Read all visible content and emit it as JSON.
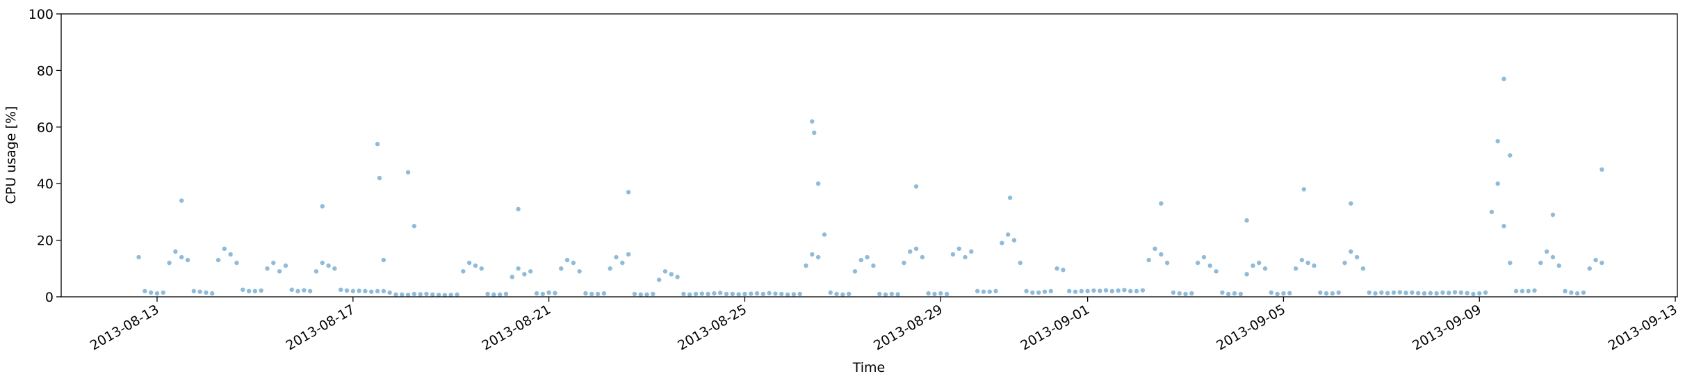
{
  "chart_data": {
    "type": "scatter",
    "x_label": "Time",
    "y_label": "CPU usage [%]",
    "color": "#1f77b4",
    "xlim": [
      "2013-08-11T01:00",
      "2013-09-13T01:00"
    ],
    "xticks": [
      "2013-08-13",
      "2013-08-17",
      "2013-08-21",
      "2013-08-25",
      "2013-08-29",
      "2013-09-01",
      "2013-09-05",
      "2013-09-09",
      "2013-09-13"
    ],
    "ylim": [
      0,
      100
    ],
    "yticks": [
      0,
      20,
      40,
      60,
      80,
      100
    ],
    "x": [
      "2013-08-12T15:00",
      "2013-08-12T18:00",
      "2013-08-12T21:00",
      "2013-08-13T00:00",
      "2013-08-13T03:00",
      "2013-08-13T06:00",
      "2013-08-13T09:00",
      "2013-08-13T12:00",
      "2013-08-13T15:00",
      "2013-08-13T18:00",
      "2013-08-13T21:00",
      "2013-08-14T00:00",
      "2013-08-14T03:00",
      "2013-08-14T06:00",
      "2013-08-14T09:00",
      "2013-08-14T12:00",
      "2013-08-14T15:00",
      "2013-08-14T18:00",
      "2013-08-14T21:00",
      "2013-08-15T00:00",
      "2013-08-15T03:00",
      "2013-08-15T06:00",
      "2013-08-15T09:00",
      "2013-08-15T12:00",
      "2013-08-15T15:00",
      "2013-08-15T18:00",
      "2013-08-15T21:00",
      "2013-08-16T00:00",
      "2013-08-16T03:00",
      "2013-08-16T06:00",
      "2013-08-16T09:00",
      "2013-08-16T12:00",
      "2013-08-16T15:00",
      "2013-08-16T18:00",
      "2013-08-16T21:00",
      "2013-08-17T00:00",
      "2013-08-17T03:00",
      "2013-08-17T06:00",
      "2013-08-17T09:00",
      "2013-08-17T12:00",
      "2013-08-17T15:00",
      "2013-08-17T18:00",
      "2013-08-17T21:00",
      "2013-08-18T00:00",
      "2013-08-18T03:00",
      "2013-08-18T06:00",
      "2013-08-18T09:00",
      "2013-08-18T12:00",
      "2013-08-18T15:00",
      "2013-08-18T18:00",
      "2013-08-18T21:00",
      "2013-08-19T00:00",
      "2013-08-19T03:00",
      "2013-08-19T06:00",
      "2013-08-19T09:00",
      "2013-08-19T12:00",
      "2013-08-19T15:00",
      "2013-08-19T18:00",
      "2013-08-19T21:00",
      "2013-08-20T00:00",
      "2013-08-20T03:00",
      "2013-08-20T06:00",
      "2013-08-20T09:00",
      "2013-08-20T12:00",
      "2013-08-20T15:00",
      "2013-08-20T18:00",
      "2013-08-20T21:00",
      "2013-08-21T00:00",
      "2013-08-21T03:00",
      "2013-08-21T06:00",
      "2013-08-21T09:00",
      "2013-08-21T12:00",
      "2013-08-21T15:00",
      "2013-08-21T18:00",
      "2013-08-21T21:00",
      "2013-08-22T00:00",
      "2013-08-22T03:00",
      "2013-08-22T06:00",
      "2013-08-22T09:00",
      "2013-08-22T12:00",
      "2013-08-22T15:00",
      "2013-08-22T18:00",
      "2013-08-22T21:00",
      "2013-08-23T00:00",
      "2013-08-23T03:00",
      "2013-08-23T06:00",
      "2013-08-23T09:00",
      "2013-08-23T12:00",
      "2013-08-23T15:00",
      "2013-08-23T18:00",
      "2013-08-23T21:00",
      "2013-08-24T00:00",
      "2013-08-24T03:00",
      "2013-08-24T06:00",
      "2013-08-24T09:00",
      "2013-08-24T12:00",
      "2013-08-24T15:00",
      "2013-08-24T18:00",
      "2013-08-24T21:00",
      "2013-08-25T00:00",
      "2013-08-25T03:00",
      "2013-08-25T06:00",
      "2013-08-25T09:00",
      "2013-08-25T12:00",
      "2013-08-25T15:00",
      "2013-08-25T18:00",
      "2013-08-25T21:00",
      "2013-08-26T00:00",
      "2013-08-26T03:00",
      "2013-08-26T06:00",
      "2013-08-26T09:00",
      "2013-08-26T12:00",
      "2013-08-26T15:00",
      "2013-08-26T18:00",
      "2013-08-26T21:00",
      "2013-08-27T00:00",
      "2013-08-27T03:00",
      "2013-08-27T06:00",
      "2013-08-27T09:00",
      "2013-08-27T12:00",
      "2013-08-27T15:00",
      "2013-08-27T18:00",
      "2013-08-27T21:00",
      "2013-08-28T00:00",
      "2013-08-28T03:00",
      "2013-08-28T06:00",
      "2013-08-28T09:00",
      "2013-08-28T12:00",
      "2013-08-28T15:00",
      "2013-08-28T18:00",
      "2013-08-28T21:00",
      "2013-08-29T00:00",
      "2013-08-29T03:00",
      "2013-08-29T06:00",
      "2013-08-29T09:00",
      "2013-08-29T12:00",
      "2013-08-29T15:00",
      "2013-08-29T18:00",
      "2013-08-29T21:00",
      "2013-08-30T00:00",
      "2013-08-30T03:00",
      "2013-08-30T06:00",
      "2013-08-30T09:00",
      "2013-08-30T12:00",
      "2013-08-30T15:00",
      "2013-08-30T18:00",
      "2013-08-30T21:00",
      "2013-08-31T00:00",
      "2013-08-31T03:00",
      "2013-08-31T06:00",
      "2013-08-31T09:00",
      "2013-08-31T12:00",
      "2013-08-31T15:00",
      "2013-08-31T18:00",
      "2013-08-31T21:00",
      "2013-09-01T00:00",
      "2013-09-01T03:00",
      "2013-09-01T06:00",
      "2013-09-01T09:00",
      "2013-09-01T12:00",
      "2013-09-01T15:00",
      "2013-09-01T18:00",
      "2013-09-01T21:00",
      "2013-09-02T00:00",
      "2013-09-02T03:00",
      "2013-09-02T06:00",
      "2013-09-02T09:00",
      "2013-09-02T12:00",
      "2013-09-02T15:00",
      "2013-09-02T18:00",
      "2013-09-02T21:00",
      "2013-09-03T00:00",
      "2013-09-03T03:00",
      "2013-09-03T06:00",
      "2013-09-03T09:00",
      "2013-09-03T12:00",
      "2013-09-03T15:00",
      "2013-09-03T18:00",
      "2013-09-03T21:00",
      "2013-09-04T00:00",
      "2013-09-04T03:00",
      "2013-09-04T06:00",
      "2013-09-04T09:00",
      "2013-09-04T12:00",
      "2013-09-04T15:00",
      "2013-09-04T18:00",
      "2013-09-04T21:00",
      "2013-09-05T00:00",
      "2013-09-05T03:00",
      "2013-09-05T06:00",
      "2013-09-05T09:00",
      "2013-09-05T12:00",
      "2013-09-05T15:00",
      "2013-09-05T18:00",
      "2013-09-05T21:00",
      "2013-09-06T00:00",
      "2013-09-06T03:00",
      "2013-09-06T06:00",
      "2013-09-06T09:00",
      "2013-09-06T12:00",
      "2013-09-06T15:00",
      "2013-09-06T18:00",
      "2013-09-06T21:00",
      "2013-09-07T00:00",
      "2013-09-07T03:00",
      "2013-09-07T06:00",
      "2013-09-07T09:00",
      "2013-09-07T12:00",
      "2013-09-07T15:00",
      "2013-09-07T18:00",
      "2013-09-07T21:00",
      "2013-09-08T00:00",
      "2013-09-08T03:00",
      "2013-09-08T06:00",
      "2013-09-08T09:00",
      "2013-09-08T12:00",
      "2013-09-08T15:00",
      "2013-09-08T18:00",
      "2013-09-08T21:00",
      "2013-09-09T00:00",
      "2013-09-09T03:00",
      "2013-09-09T06:00",
      "2013-09-09T09:00",
      "2013-09-09T12:00",
      "2013-09-09T15:00",
      "2013-09-09T18:00",
      "2013-09-09T21:00",
      "2013-09-10T00:00",
      "2013-09-10T03:00",
      "2013-09-10T06:00",
      "2013-09-10T09:00",
      "2013-09-10T12:00",
      "2013-09-10T15:00",
      "2013-09-10T18:00",
      "2013-09-10T21:00",
      "2013-09-11T00:00",
      "2013-09-11T03:00",
      "2013-09-11T06:00",
      "2013-09-11T09:00",
      "2013-09-11T12:00",
      "2013-08-17T12:00",
      "2013-08-17T13:00",
      "2013-08-17T15:00",
      "2013-08-18T03:00",
      "2013-08-18T06:00",
      "2013-08-13T12:00",
      "2013-08-16T09:00",
      "2013-08-20T09:00",
      "2013-08-22T15:00",
      "2013-08-26T09:00",
      "2013-08-26T10:00",
      "2013-08-26T12:00",
      "2013-08-28T12:00",
      "2013-08-30T10:00",
      "2013-09-02T12:00",
      "2013-09-05T10:00",
      "2013-09-06T09:00",
      "2013-09-09T09:00",
      "2013-09-09T12:00",
      "2013-09-09T15:00",
      "2013-09-11T12:00",
      "2013-09-04T06:00",
      "2013-09-10T12:00"
    ],
    "values": [
      14,
      2,
      1.5,
      1.2,
      1.5,
      12,
      16,
      14,
      13,
      2,
      1.8,
      1.5,
      1.2,
      13,
      17,
      15,
      12,
      2.5,
      2,
      2,
      2.2,
      10,
      12,
      9,
      11,
      2.5,
      2,
      2.3,
      2,
      9,
      12,
      11,
      10,
      2.5,
      2.2,
      2,
      2.1,
      2,
      1.8,
      2,
      2,
      1.5,
      0.8,
      0.8,
      0.7,
      1,
      0.9,
      1,
      0.8,
      0.7,
      0.6,
      0.7,
      0.8,
      9,
      12,
      11,
      10,
      1,
      0.8,
      0.8,
      1,
      7,
      10,
      8,
      9,
      1.2,
      1,
      1.5,
      1.3,
      10,
      13,
      12,
      9,
      1.2,
      1,
      1,
      1.2,
      10,
      14,
      12,
      15,
      1,
      0.8,
      0.8,
      1,
      6,
      9,
      8,
      7,
      1,
      0.8,
      1,
      1.1,
      1,
      1.2,
      1.4,
      1,
      1,
      0.9,
      1,
      1.1,
      1.2,
      1,
      1.3,
      1.1,
      1,
      0.8,
      0.9,
      1,
      11,
      15,
      14,
      22,
      1.5,
      1,
      0.8,
      1,
      9,
      13,
      14,
      11,
      1,
      0.8,
      1,
      0.9,
      12,
      16,
      17,
      14,
      1.2,
      1,
      1.2,
      1,
      15,
      17,
      14,
      16,
      2,
      1.8,
      1.8,
      2,
      19,
      22,
      20,
      12,
      2,
      1.5,
      1.5,
      1.8,
      2,
      10,
      9.5,
      2,
      1.8,
      2,
      2,
      2.2,
      2.1,
      2.3,
      2,
      2.2,
      2.4,
      2,
      2,
      2.3,
      13,
      17,
      15,
      12,
      1.5,
      1.2,
      1,
      1.2,
      12,
      14,
      11,
      9,
      1.5,
      1,
      1.2,
      1,
      8,
      11,
      12,
      10,
      1.5,
      1,
      1.2,
      1.3,
      10,
      13,
      12,
      11,
      1.5,
      1.2,
      1.2,
      1.5,
      12,
      16,
      14,
      10,
      1.5,
      1.2,
      1.5,
      1.3,
      1.5,
      1.6,
      1.4,
      1.5,
      1.3,
      1.2,
      1.3,
      1.2,
      1.5,
      1.4,
      1.6,
      1.5,
      1.3,
      1,
      1.2,
      1.5,
      30,
      40,
      25,
      12,
      2,
      2,
      2,
      2.2,
      12,
      16,
      14,
      11,
      2,
      1.5,
      1.2,
      1.5,
      10,
      13,
      12,
      54,
      42,
      13,
      44,
      25,
      34,
      32,
      31,
      37,
      62,
      58,
      40,
      39,
      35,
      33,
      38,
      33,
      55,
      77,
      50,
      45,
      27,
      29
    ]
  }
}
